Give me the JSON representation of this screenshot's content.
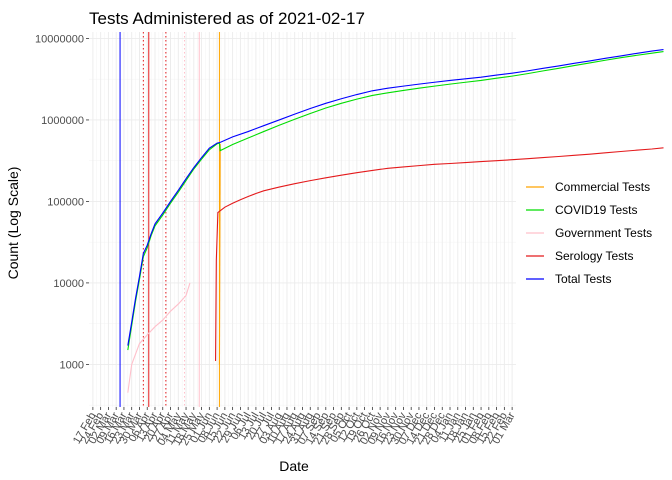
{
  "chart_data": {
    "type": "line",
    "title": "Tests Administered as of 2021-02-17",
    "xlabel": "Date",
    "ylabel": "Count (Log Scale)",
    "y_scale": "log10",
    "ylim": [
      300,
      12000000
    ],
    "y_ticks": [
      {
        "value": 1000,
        "label": "1000"
      },
      {
        "value": 10000,
        "label": "10000"
      },
      {
        "value": 100000,
        "label": "100000"
      },
      {
        "value": 1000000,
        "label": "1000000"
      },
      {
        "value": 10000000,
        "label": "10000000"
      }
    ],
    "x_ticks": [
      "17 Feb",
      "24 Feb",
      "02 Mar",
      "09 Mar",
      "16 Mar",
      "23 Mar",
      "30 Mar",
      "06 Apr",
      "13 Apr",
      "20 Apr",
      "27 Apr",
      "04 May",
      "11 May",
      "18 May",
      "25 May",
      "01 Jun",
      "08 Jun",
      "15 Jun",
      "22 Jun",
      "29 Jun",
      "06 Jul",
      "13 Jul",
      "20 Jul",
      "27 Jul",
      "03 Aug",
      "10 Aug",
      "17 Aug",
      "24 Aug",
      "31 Aug",
      "07 Sep",
      "14 Sep",
      "21 Sep",
      "28 Sep",
      "05 Oct",
      "12 Oct",
      "19 Oct",
      "26 Oct",
      "02 Nov",
      "09 Nov",
      "16 Nov",
      "23 Nov",
      "30 Nov",
      "07 Dec",
      "14 Dec",
      "21 Dec",
      "28 Dec",
      "04 Jan",
      "11 Jan",
      "18 Jan",
      "25 Jan",
      "01 Feb",
      "08 Feb",
      "15 Feb",
      "22 Feb",
      "01 Mar"
    ],
    "grid": true,
    "legend_position": "right",
    "vlines": [
      {
        "x": 3.5,
        "color": "#0000ff",
        "style": "solid"
      },
      {
        "x": 6.5,
        "color": "#e41a1c",
        "style": "dotted"
      },
      {
        "x": 7.2,
        "color": "#e41a1c",
        "style": "solid"
      },
      {
        "x": 9.4,
        "color": "#e41a1c",
        "style": "dotted"
      },
      {
        "x": 11.8,
        "color": "#ffc0cb",
        "style": "dotted"
      },
      {
        "x": 13.7,
        "color": "#ffc0cb",
        "style": "solid"
      },
      {
        "x": 16.3,
        "color": "#ffa500",
        "style": "solid"
      }
    ],
    "series": [
      {
        "name": "Commercial Tests",
        "color": "#ffa500",
        "points": [
          [
            16.3,
            1000
          ],
          [
            16.4,
            510000
          ]
        ]
      },
      {
        "name": "COVID19 Tests",
        "color": "#00dd00",
        "points": [
          [
            4.5,
            1500
          ],
          [
            5,
            3000
          ],
          [
            5.5,
            6000
          ],
          [
            6,
            11000
          ],
          [
            6.5,
            21000
          ],
          [
            7,
            27000
          ],
          [
            7.5,
            38000
          ],
          [
            8,
            50000
          ],
          [
            9,
            68000
          ],
          [
            10,
            95000
          ],
          [
            11,
            130000
          ],
          [
            12,
            180000
          ],
          [
            13,
            250000
          ],
          [
            14,
            330000
          ],
          [
            15,
            430000
          ],
          [
            16,
            510000
          ],
          [
            16.3,
            520000
          ],
          [
            16.4,
            420000
          ],
          [
            18,
            500000
          ],
          [
            20,
            600000
          ],
          [
            22,
            720000
          ],
          [
            24,
            860000
          ],
          [
            26,
            1020000
          ],
          [
            28,
            1200000
          ],
          [
            30,
            1400000
          ],
          [
            32,
            1600000
          ],
          [
            34,
            1800000
          ],
          [
            36,
            2000000
          ],
          [
            38,
            2150000
          ],
          [
            40,
            2300000
          ],
          [
            42,
            2450000
          ],
          [
            44,
            2600000
          ],
          [
            46,
            2750000
          ],
          [
            48,
            2900000
          ],
          [
            50,
            3050000
          ],
          [
            52,
            3250000
          ],
          [
            54,
            3450000
          ],
          [
            56,
            3700000
          ],
          [
            58,
            4000000
          ],
          [
            60,
            4300000
          ],
          [
            62,
            4650000
          ],
          [
            64,
            5000000
          ],
          [
            66,
            5400000
          ],
          [
            68,
            5800000
          ],
          [
            70,
            6200000
          ],
          [
            72,
            6600000
          ],
          [
            73.5,
            6900000
          ]
        ]
      },
      {
        "name": "Government Tests",
        "color": "#ffc0cb",
        "points": [
          [
            4.5,
            450
          ],
          [
            5,
            1000
          ],
          [
            6,
            1800
          ],
          [
            7,
            2300
          ],
          [
            8,
            2900
          ],
          [
            9,
            3500
          ],
          [
            10,
            4500
          ],
          [
            11,
            5500
          ],
          [
            12,
            7000
          ],
          [
            12.5,
            10000
          ]
        ]
      },
      {
        "name": "Serology Tests",
        "color": "#e41a1c",
        "points": [
          [
            15.8,
            1100
          ],
          [
            15.9,
            19000
          ],
          [
            16.1,
            73000
          ],
          [
            17,
            85000
          ],
          [
            18,
            95000
          ],
          [
            19,
            105000
          ],
          [
            20,
            115000
          ],
          [
            21,
            125000
          ],
          [
            22,
            135000
          ],
          [
            24,
            150000
          ],
          [
            26,
            165000
          ],
          [
            28,
            180000
          ],
          [
            30,
            195000
          ],
          [
            32,
            210000
          ],
          [
            34,
            225000
          ],
          [
            36,
            240000
          ],
          [
            38,
            255000
          ],
          [
            40,
            265000
          ],
          [
            42,
            275000
          ],
          [
            44,
            285000
          ],
          [
            46,
            292000
          ],
          [
            48,
            300000
          ],
          [
            50,
            308000
          ],
          [
            52,
            316000
          ],
          [
            54,
            325000
          ],
          [
            56,
            335000
          ],
          [
            58,
            345000
          ],
          [
            60,
            356000
          ],
          [
            62,
            368000
          ],
          [
            64,
            380000
          ],
          [
            66,
            395000
          ],
          [
            68,
            410000
          ],
          [
            70,
            425000
          ],
          [
            72,
            440000
          ],
          [
            73.5,
            455000
          ]
        ]
      },
      {
        "name": "Total Tests",
        "color": "#0000ff",
        "points": [
          [
            4.5,
            1700
          ],
          [
            5,
            3300
          ],
          [
            5.5,
            6500
          ],
          [
            6,
            12000
          ],
          [
            6.5,
            23000
          ],
          [
            7,
            29000
          ],
          [
            7.5,
            40000
          ],
          [
            8,
            53000
          ],
          [
            9,
            72000
          ],
          [
            10,
            100000
          ],
          [
            11,
            137000
          ],
          [
            12,
            190000
          ],
          [
            13,
            260000
          ],
          [
            14,
            345000
          ],
          [
            15,
            450000
          ],
          [
            16,
            520000
          ],
          [
            16.4,
            530000
          ],
          [
            18,
            620000
          ],
          [
            20,
            720000
          ],
          [
            22,
            850000
          ],
          [
            24,
            1000000
          ],
          [
            26,
            1180000
          ],
          [
            28,
            1380000
          ],
          [
            30,
            1600000
          ],
          [
            32,
            1820000
          ],
          [
            34,
            2050000
          ],
          [
            36,
            2280000
          ],
          [
            38,
            2450000
          ],
          [
            40,
            2600000
          ],
          [
            42,
            2750000
          ],
          [
            44,
            2900000
          ],
          [
            46,
            3050000
          ],
          [
            48,
            3200000
          ],
          [
            50,
            3350000
          ],
          [
            52,
            3550000
          ],
          [
            54,
            3750000
          ],
          [
            56,
            4000000
          ],
          [
            58,
            4300000
          ],
          [
            60,
            4600000
          ],
          [
            62,
            4950000
          ],
          [
            64,
            5300000
          ],
          [
            66,
            5700000
          ],
          [
            68,
            6100000
          ],
          [
            70,
            6550000
          ],
          [
            72,
            7000000
          ],
          [
            73.5,
            7300000
          ]
        ]
      }
    ]
  }
}
